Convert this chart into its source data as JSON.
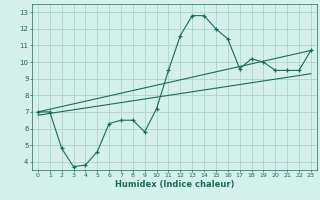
{
  "xlabel": "Humidex (Indice chaleur)",
  "ylabel": "",
  "bg_color": "#d4f0eb",
  "grid_color": "#aed4cc",
  "line_color": "#1a6b5a",
  "xlim": [
    -0.5,
    23.5
  ],
  "ylim": [
    3.5,
    13.5
  ],
  "xticks": [
    0,
    1,
    2,
    3,
    4,
    5,
    6,
    7,
    8,
    9,
    10,
    11,
    12,
    13,
    14,
    15,
    16,
    17,
    18,
    19,
    20,
    21,
    22,
    23
  ],
  "yticks": [
    4,
    5,
    6,
    7,
    8,
    9,
    10,
    11,
    12,
    13
  ],
  "line1_x": [
    0,
    1,
    2,
    3,
    4,
    5,
    6,
    7,
    8,
    9,
    10,
    11,
    12,
    13,
    14,
    15,
    16,
    17,
    18,
    19,
    20,
    21,
    22,
    23
  ],
  "line1_y": [
    7.0,
    7.0,
    4.8,
    3.7,
    3.8,
    4.6,
    6.3,
    6.5,
    6.5,
    5.8,
    7.2,
    9.5,
    11.6,
    12.8,
    12.8,
    12.0,
    11.4,
    9.6,
    10.2,
    10.0,
    9.5,
    9.5,
    9.5,
    10.7
  ],
  "line2_x": [
    0,
    23
  ],
  "line2_y": [
    7.0,
    10.7
  ],
  "line3_x": [
    0,
    23
  ],
  "line3_y": [
    6.8,
    9.3
  ]
}
